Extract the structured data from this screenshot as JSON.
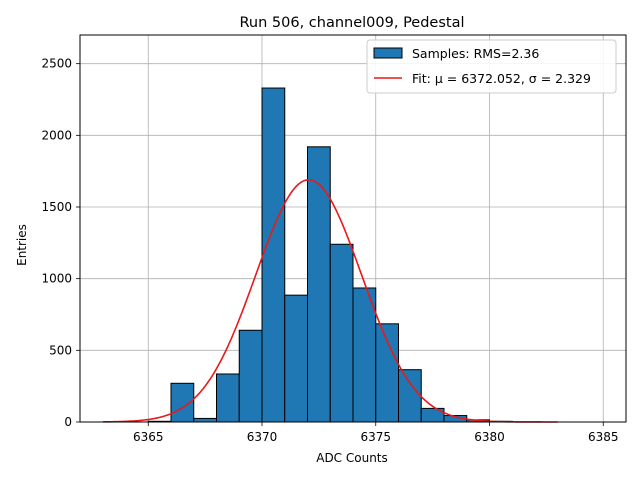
{
  "chart_data": {
    "type": "bar",
    "title": "Run 506, channel009, Pedestal",
    "xlabel": "ADC Counts",
    "ylabel": "Entries",
    "xlim": [
      6362,
      6386
    ],
    "ylim": [
      0,
      2700
    ],
    "xticks": [
      6365,
      6370,
      6375,
      6380,
      6385
    ],
    "yticks": [
      0,
      500,
      1000,
      1500,
      2000,
      2500
    ],
    "grid": true,
    "legend_position": "top-right",
    "bin_width": 1,
    "bins": [
      {
        "x0": 6365,
        "count": 5
      },
      {
        "x0": 6366,
        "count": 270
      },
      {
        "x0": 6367,
        "count": 25
      },
      {
        "x0": 6368,
        "count": 335
      },
      {
        "x0": 6369,
        "count": 640
      },
      {
        "x0": 6370,
        "count": 2330
      },
      {
        "x0": 6371,
        "count": 885
      },
      {
        "x0": 6372,
        "count": 1920
      },
      {
        "x0": 6373,
        "count": 1240
      },
      {
        "x0": 6374,
        "count": 935
      },
      {
        "x0": 6375,
        "count": 685
      },
      {
        "x0": 6376,
        "count": 365
      },
      {
        "x0": 6377,
        "count": 95
      },
      {
        "x0": 6378,
        "count": 45
      },
      {
        "x0": 6379,
        "count": 15
      },
      {
        "x0": 6380,
        "count": 5
      }
    ],
    "fit": {
      "mu": 6372.052,
      "sigma": 2.329,
      "peak": 1690,
      "x_range": [
        6363,
        6383
      ]
    },
    "legend": [
      {
        "label": "Samples: RMS=2.36",
        "kind": "patch"
      },
      {
        "label": "Fit: μ = 6372.052, σ = 2.329",
        "kind": "line"
      }
    ],
    "colors": {
      "bar_fill": "#1f77b4",
      "bar_edge": "#000000",
      "fit_line": "#e8191b",
      "grid": "#b0b0b0"
    }
  }
}
